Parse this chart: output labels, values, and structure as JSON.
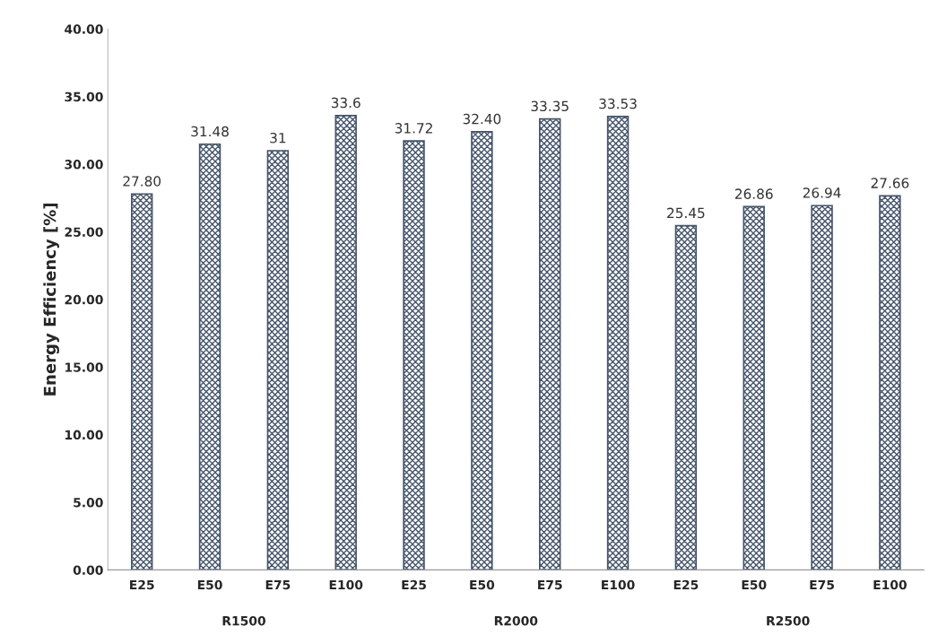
{
  "chart_data": {
    "type": "bar",
    "ylabel": "Energy Efficiency [%]",
    "categories": [
      "E25",
      "E50",
      "E75",
      "E100",
      "E25",
      "E50",
      "E75",
      "E100",
      "E25",
      "E50",
      "E75",
      "E100"
    ],
    "values": [
      27.8,
      31.48,
      31,
      33.6,
      31.72,
      32.4,
      33.35,
      33.53,
      25.45,
      26.86,
      26.94,
      27.66
    ],
    "value_labels": [
      "27.80",
      "31.48",
      "31",
      "33.6",
      "31.72",
      "32.40",
      "33.35",
      "33.53",
      "25.45",
      "26.86",
      "26.94",
      "27.66"
    ],
    "color": "#44546a",
    "ylim": [
      0,
      40
    ],
    "yticks": [
      {
        "value": 0,
        "label": "0.00"
      },
      {
        "value": 5,
        "label": "5.00"
      },
      {
        "value": 10,
        "label": "10.00"
      },
      {
        "value": 15,
        "label": "15.00"
      },
      {
        "value": 20,
        "label": "20.00"
      },
      {
        "value": 25,
        "label": "25.00"
      },
      {
        "value": 30,
        "label": "30.00"
      },
      {
        "value": 35,
        "label": "35.00"
      },
      {
        "value": 40,
        "label": "40.00"
      }
    ],
    "annotations": [
      "R1500",
      "R2000",
      "R2500"
    ],
    "grid": false
  }
}
